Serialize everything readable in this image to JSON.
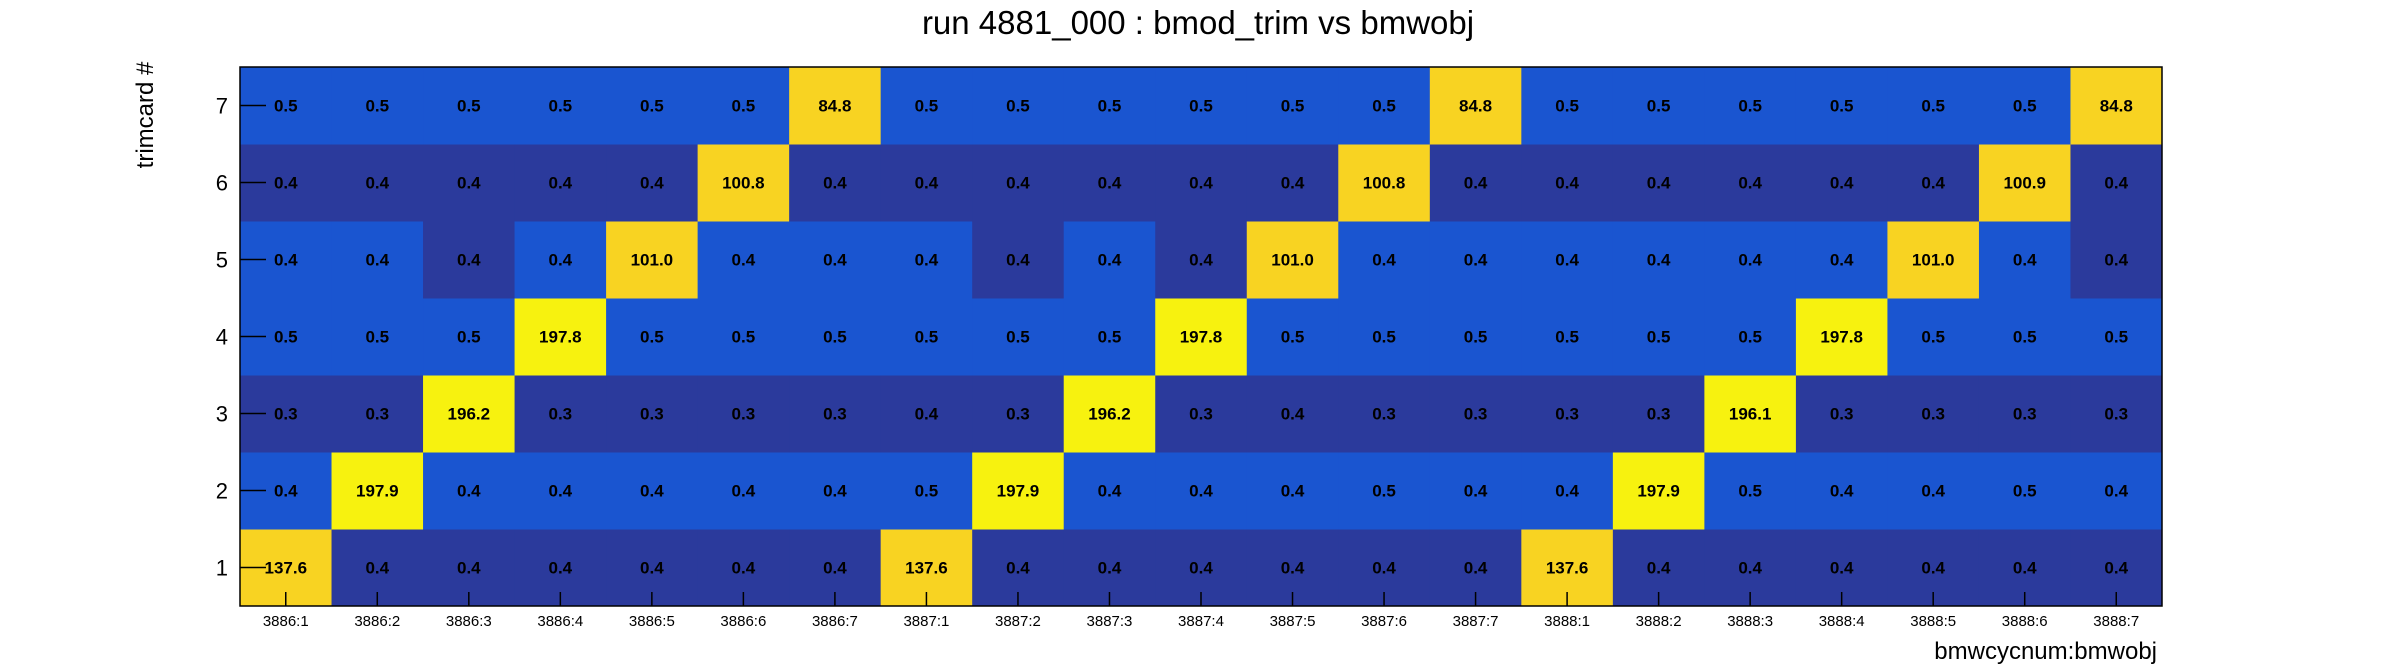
{
  "chart_data": {
    "type": "heatmap",
    "title": "run 4881_000 : bmod_trim vs bmwobj",
    "xlabel": "bmwcycnum:bmwobj",
    "ylabel": "trimcard #",
    "x_categories": [
      "3886:1",
      "3886:2",
      "3886:3",
      "3886:4",
      "3886:5",
      "3886:6",
      "3886:7",
      "3887:1",
      "3887:2",
      "3887:3",
      "3887:4",
      "3887:5",
      "3887:6",
      "3887:7",
      "3888:1",
      "3888:2",
      "3888:3",
      "3888:4",
      "3888:5",
      "3888:6",
      "3888:7"
    ],
    "y_categories": [
      "1",
      "2",
      "3",
      "4",
      "5",
      "6",
      "7"
    ],
    "value_labels": [
      [
        "137.6",
        "0.4",
        "0.4",
        "0.4",
        "0.4",
        "0.4",
        "0.4",
        "137.6",
        "0.4",
        "0.4",
        "0.4",
        "0.4",
        "0.4",
        "0.4",
        "137.6",
        "0.4",
        "0.4",
        "0.4",
        "0.4",
        "0.4",
        "0.4"
      ],
      [
        "0.4",
        "197.9",
        "0.4",
        "0.4",
        "0.4",
        "0.4",
        "0.4",
        "0.5",
        "197.9",
        "0.4",
        "0.4",
        "0.4",
        "0.5",
        "0.4",
        "0.4",
        "197.9",
        "0.5",
        "0.4",
        "0.4",
        "0.5",
        "0.4"
      ],
      [
        "0.3",
        "0.3",
        "196.2",
        "0.3",
        "0.3",
        "0.3",
        "0.3",
        "0.4",
        "0.3",
        "196.2",
        "0.3",
        "0.4",
        "0.3",
        "0.3",
        "0.3",
        "0.3",
        "196.1",
        "0.3",
        "0.3",
        "0.3",
        "0.3"
      ],
      [
        "0.5",
        "0.5",
        "0.5",
        "197.8",
        "0.5",
        "0.5",
        "0.5",
        "0.5",
        "0.5",
        "0.5",
        "197.8",
        "0.5",
        "0.5",
        "0.5",
        "0.5",
        "0.5",
        "0.5",
        "197.8",
        "0.5",
        "0.5",
        "0.5"
      ],
      [
        "0.4",
        "0.4",
        "0.4",
        "0.4",
        "101.0",
        "0.4",
        "0.4",
        "0.4",
        "0.4",
        "0.4",
        "0.4",
        "101.0",
        "0.4",
        "0.4",
        "0.4",
        "0.4",
        "0.4",
        "0.4",
        "101.0",
        "0.4",
        "0.4"
      ],
      [
        "0.4",
        "0.4",
        "0.4",
        "0.4",
        "0.4",
        "100.8",
        "0.4",
        "0.4",
        "0.4",
        "0.4",
        "0.4",
        "0.4",
        "100.8",
        "0.4",
        "0.4",
        "0.4",
        "0.4",
        "0.4",
        "0.4",
        "100.9",
        "0.4"
      ],
      [
        "0.5",
        "0.5",
        "0.5",
        "0.5",
        "0.5",
        "0.5",
        "84.8",
        "0.5",
        "0.5",
        "0.5",
        "0.5",
        "0.5",
        "0.5",
        "84.8",
        "0.5",
        "0.5",
        "0.5",
        "0.5",
        "0.5",
        "0.5",
        "84.8"
      ]
    ],
    "cell_colors": [
      [
        "#f8d322",
        "#2b3a9c",
        "#2b3a9c",
        "#2b3a9c",
        "#2b3a9c",
        "#2b3a9c",
        "#2b3a9c",
        "#f8d322",
        "#2b3a9c",
        "#2b3a9c",
        "#2b3a9c",
        "#2b3a9c",
        "#2b3a9c",
        "#2b3a9c",
        "#f8d322",
        "#2b3a9c",
        "#2b3a9c",
        "#2b3a9c",
        "#2b3a9c",
        "#2b3a9c",
        "#2b3a9c"
      ],
      [
        "#1a55d0",
        "#f7f20f",
        "#1a55d0",
        "#1a55d0",
        "#1a55d0",
        "#1a55d0",
        "#1a55d0",
        "#1a55d0",
        "#f7f20f",
        "#1a55d0",
        "#1a55d0",
        "#1a55d0",
        "#1a55d0",
        "#1a55d0",
        "#1a55d0",
        "#f7f20f",
        "#1a55d0",
        "#1a55d0",
        "#1a55d0",
        "#1a55d0",
        "#1a55d0"
      ],
      [
        "#2b3a9c",
        "#2b3a9c",
        "#f7f20f",
        "#2b3a9c",
        "#2b3a9c",
        "#2b3a9c",
        "#2b3a9c",
        "#2b3a9c",
        "#2b3a9c",
        "#f7f20f",
        "#2b3a9c",
        "#2b3a9c",
        "#2b3a9c",
        "#2b3a9c",
        "#2b3a9c",
        "#2b3a9c",
        "#f7f20f",
        "#2b3a9c",
        "#2b3a9c",
        "#2b3a9c",
        "#2b3a9c"
      ],
      [
        "#1a55d0",
        "#1a55d0",
        "#1a55d0",
        "#f7f20f",
        "#1a55d0",
        "#1a55d0",
        "#1a55d0",
        "#1a55d0",
        "#1a55d0",
        "#1a55d0",
        "#f7f20f",
        "#1a55d0",
        "#1a55d0",
        "#1a55d0",
        "#1a55d0",
        "#1a55d0",
        "#1a55d0",
        "#f7f20f",
        "#1a55d0",
        "#1a55d0",
        "#1a55d0"
      ],
      [
        "#1a55d0",
        "#1a55d0",
        "#2b3a9c",
        "#1a55d0",
        "#f8d322",
        "#1a55d0",
        "#1a55d0",
        "#1a55d0",
        "#2b3a9c",
        "#1a55d0",
        "#2b3a9c",
        "#f8d322",
        "#1a55d0",
        "#1a55d0",
        "#1a55d0",
        "#1a55d0",
        "#1a55d0",
        "#1a55d0",
        "#f8d322",
        "#1a55d0",
        "#2b3a9c"
      ],
      [
        "#2b3a9c",
        "#2b3a9c",
        "#2b3a9c",
        "#2b3a9c",
        "#2b3a9c",
        "#f8d322",
        "#2b3a9c",
        "#2b3a9c",
        "#2b3a9c",
        "#2b3a9c",
        "#2b3a9c",
        "#2b3a9c",
        "#f8d322",
        "#2b3a9c",
        "#2b3a9c",
        "#2b3a9c",
        "#2b3a9c",
        "#2b3a9c",
        "#2b3a9c",
        "#f8d322",
        "#2b3a9c"
      ],
      [
        "#1a55d0",
        "#1a55d0",
        "#1a55d0",
        "#1a55d0",
        "#1a55d0",
        "#1a55d0",
        "#f8d322",
        "#1a55d0",
        "#1a55d0",
        "#1a55d0",
        "#1a55d0",
        "#1a55d0",
        "#1a55d0",
        "#f8d322",
        "#1a55d0",
        "#1a55d0",
        "#1a55d0",
        "#1a55d0",
        "#1a55d0",
        "#1a55d0",
        "#f8d322"
      ]
    ],
    "grid": false,
    "legend": "none"
  }
}
